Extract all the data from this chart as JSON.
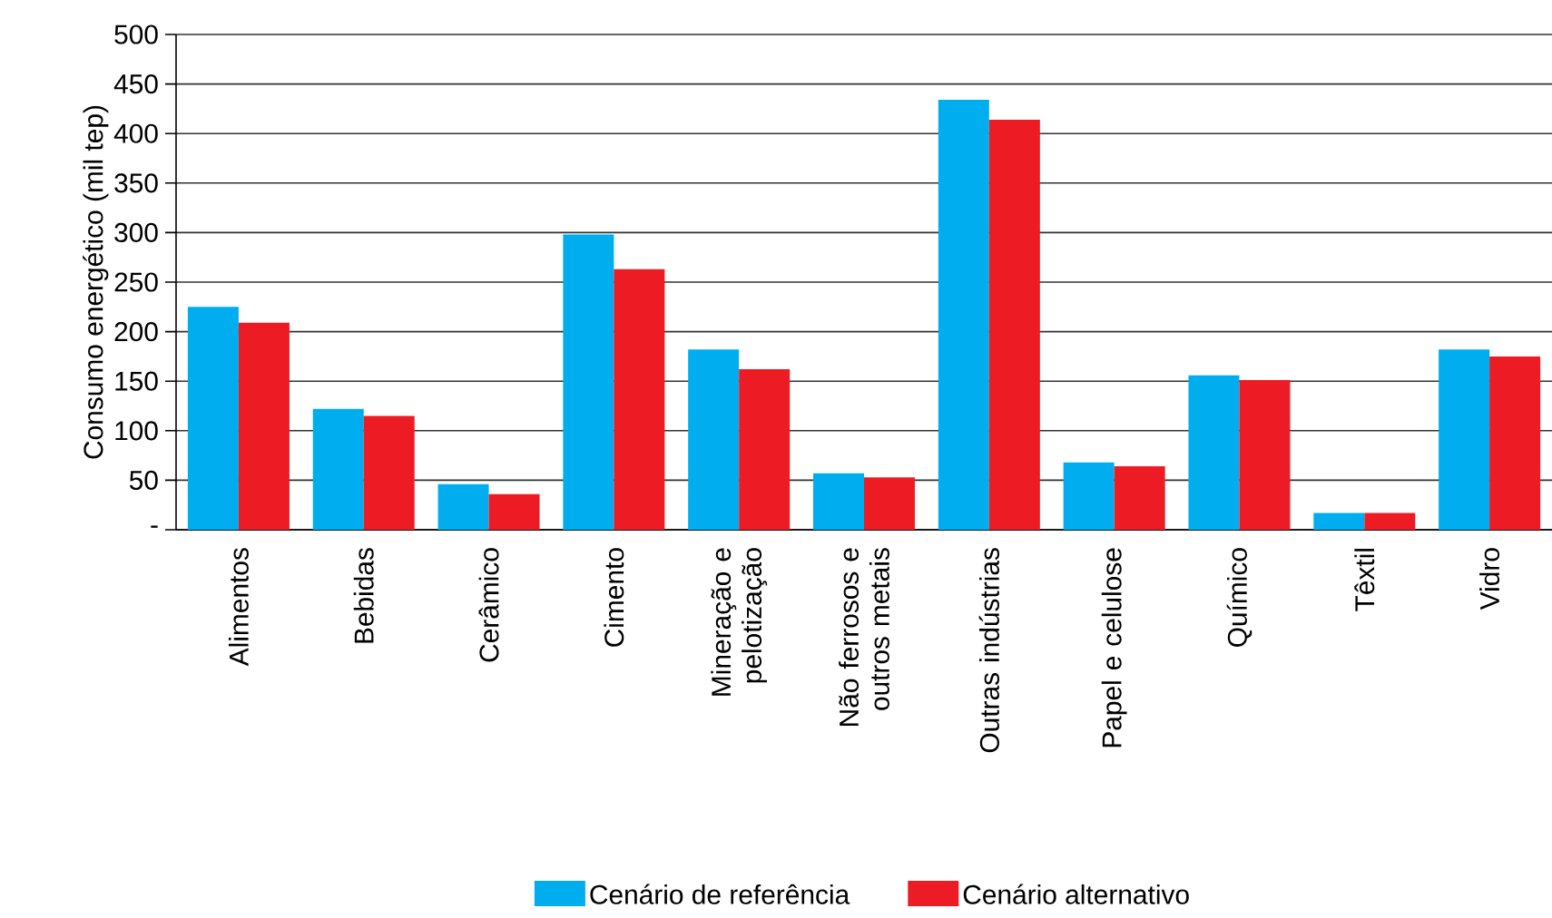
{
  "chart_data": {
    "type": "bar",
    "ylabel": "Consumo energético (mil tep)",
    "categories": [
      "Alimentos",
      "Bebidas",
      "Cerâmico",
      "Cimento",
      "Mineração e pelotização",
      "Não ferrosos e outros metais",
      "Outras indústrias",
      "Papel e celulose",
      "Químico",
      "Têxtil",
      "Vidro"
    ],
    "series": [
      {
        "name": "Cenário de referência",
        "color": "#00aeef",
        "values": [
          225,
          122,
          46,
          298,
          182,
          57,
          434,
          68,
          156,
          17,
          182
        ]
      },
      {
        "name": "Cenário alternativo",
        "color": "#ed1c24",
        "values": [
          209,
          115,
          36,
          263,
          162,
          53,
          414,
          64,
          151,
          17,
          175
        ]
      }
    ],
    "ylim": [
      0,
      500
    ],
    "yticks": [
      {
        "value": 0,
        "label": "-"
      },
      50,
      100,
      150,
      200,
      250,
      300,
      350,
      400,
      450,
      500
    ],
    "grid": "y",
    "legend": "bottom"
  }
}
